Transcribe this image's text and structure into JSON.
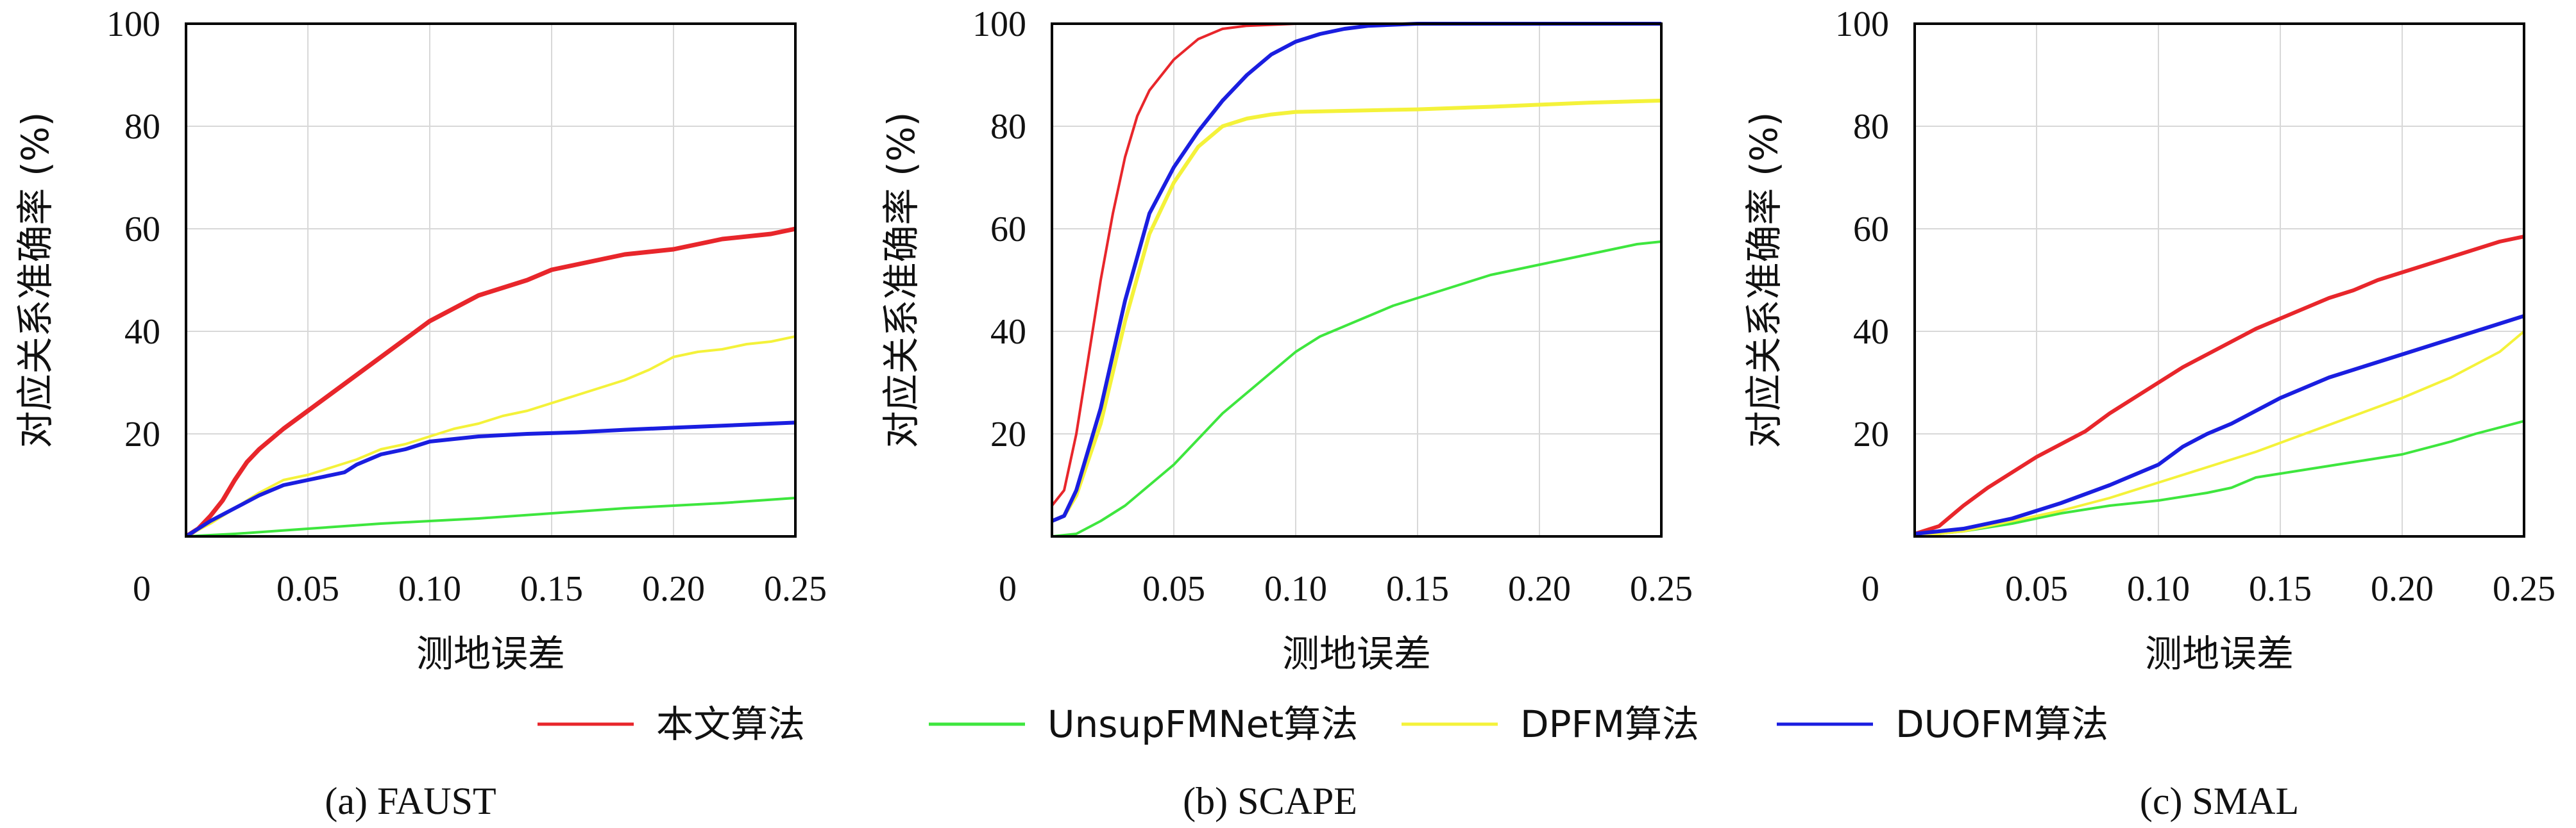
{
  "chart_data": [
    {
      "type": "line",
      "caption": "(a) FAUST",
      "xlabel": "测地误差",
      "ylabel": "对应关系准确率 (%)",
      "xlim": [
        0,
        0.25
      ],
      "ylim": [
        0,
        100
      ],
      "x_ticks": [
        "0",
        "0.05",
        "0.10",
        "0.15",
        "0.20",
        "0.25"
      ],
      "y_ticks": [
        "20",
        "40",
        "60",
        "80",
        "100"
      ],
      "grid": true,
      "series": [
        {
          "name": "本文算法",
          "color": "#e8262b",
          "width": 7,
          "points": [
            [
              0,
              0
            ],
            [
              0.005,
              1.5
            ],
            [
              0.01,
              4
            ],
            [
              0.015,
              7
            ],
            [
              0.02,
              11
            ],
            [
              0.025,
              14.5
            ],
            [
              0.03,
              17
            ],
            [
              0.04,
              21
            ],
            [
              0.05,
              24.5
            ],
            [
              0.06,
              28
            ],
            [
              0.07,
              31.5
            ],
            [
              0.08,
              35
            ],
            [
              0.09,
              38.5
            ],
            [
              0.1,
              42
            ],
            [
              0.11,
              44.5
            ],
            [
              0.12,
              47
            ],
            [
              0.13,
              48.5
            ],
            [
              0.14,
              50
            ],
            [
              0.15,
              52
            ],
            [
              0.16,
              53
            ],
            [
              0.17,
              54
            ],
            [
              0.18,
              55
            ],
            [
              0.19,
              55.5
            ],
            [
              0.2,
              56
            ],
            [
              0.21,
              57
            ],
            [
              0.22,
              58
            ],
            [
              0.23,
              58.5
            ],
            [
              0.24,
              59
            ],
            [
              0.25,
              60
            ]
          ]
        },
        {
          "name": "UnsupFMNet算法",
          "color": "#3ee63e",
          "width": 4,
          "points": [
            [
              0,
              0
            ],
            [
              0.02,
              0.5
            ],
            [
              0.05,
              1.5
            ],
            [
              0.08,
              2.5
            ],
            [
              0.1,
              3
            ],
            [
              0.12,
              3.5
            ],
            [
              0.15,
              4.5
            ],
            [
              0.18,
              5.5
            ],
            [
              0.2,
              6
            ],
            [
              0.22,
              6.5
            ],
            [
              0.25,
              7.5
            ]
          ]
        },
        {
          "name": "DPFM算法",
          "color": "#f4f23a",
          "width": 4,
          "points": [
            [
              0,
              0
            ],
            [
              0.01,
              2.5
            ],
            [
              0.02,
              5.5
            ],
            [
              0.03,
              8.5
            ],
            [
              0.04,
              11
            ],
            [
              0.05,
              12
            ],
            [
              0.06,
              13.5
            ],
            [
              0.07,
              15
            ],
            [
              0.08,
              17
            ],
            [
              0.09,
              18
            ],
            [
              0.1,
              19.5
            ],
            [
              0.11,
              21
            ],
            [
              0.12,
              22
            ],
            [
              0.13,
              23.5
            ],
            [
              0.14,
              24.5
            ],
            [
              0.15,
              26
            ],
            [
              0.16,
              27.5
            ],
            [
              0.17,
              29
            ],
            [
              0.18,
              30.5
            ],
            [
              0.19,
              32.5
            ],
            [
              0.2,
              35
            ],
            [
              0.21,
              36
            ],
            [
              0.22,
              36.5
            ],
            [
              0.23,
              37.5
            ],
            [
              0.24,
              38
            ],
            [
              0.25,
              39
            ]
          ]
        },
        {
          "name": "DUOFM算法",
          "color": "#1a1ee0",
          "width": 6,
          "points": [
            [
              0,
              0
            ],
            [
              0.01,
              3
            ],
            [
              0.02,
              5.5
            ],
            [
              0.03,
              8
            ],
            [
              0.04,
              10
            ],
            [
              0.05,
              11
            ],
            [
              0.06,
              12
            ],
            [
              0.065,
              12.5
            ],
            [
              0.07,
              14
            ],
            [
              0.08,
              16
            ],
            [
              0.09,
              17
            ],
            [
              0.1,
              18.5
            ],
            [
              0.11,
              19
            ],
            [
              0.12,
              19.5
            ],
            [
              0.14,
              20
            ],
            [
              0.16,
              20.3
            ],
            [
              0.18,
              20.8
            ],
            [
              0.2,
              21.2
            ],
            [
              0.22,
              21.6
            ],
            [
              0.25,
              22.2
            ]
          ]
        }
      ]
    },
    {
      "type": "line",
      "caption": "(b) SCAPE",
      "xlabel": "测地误差",
      "ylabel": "对应关系准确率 (%)",
      "xlim": [
        0,
        0.25
      ],
      "ylim": [
        0,
        100
      ],
      "x_ticks": [
        "0",
        "0.05",
        "0.10",
        "0.15",
        "0.20",
        "0.25"
      ],
      "y_ticks": [
        "20",
        "40",
        "60",
        "80",
        "100"
      ],
      "grid": true,
      "series": [
        {
          "name": "本文算法",
          "color": "#e8262b",
          "width": 4,
          "points": [
            [
              0,
              6
            ],
            [
              0.005,
              9
            ],
            [
              0.01,
              20
            ],
            [
              0.015,
              35
            ],
            [
              0.02,
              50
            ],
            [
              0.025,
              63
            ],
            [
              0.03,
              74
            ],
            [
              0.035,
              82
            ],
            [
              0.04,
              87
            ],
            [
              0.05,
              93
            ],
            [
              0.06,
              97
            ],
            [
              0.07,
              99
            ],
            [
              0.08,
              99.6
            ],
            [
              0.1,
              100
            ],
            [
              0.25,
              100
            ]
          ]
        },
        {
          "name": "UnsupFMNet算法",
          "color": "#3ee63e",
          "width": 4,
          "points": [
            [
              0,
              0
            ],
            [
              0.01,
              0.5
            ],
            [
              0.02,
              3
            ],
            [
              0.03,
              6
            ],
            [
              0.04,
              10
            ],
            [
              0.05,
              14
            ],
            [
              0.06,
              19
            ],
            [
              0.07,
              24
            ],
            [
              0.08,
              28
            ],
            [
              0.09,
              32
            ],
            [
              0.1,
              36
            ],
            [
              0.11,
              39
            ],
            [
              0.12,
              41
            ],
            [
              0.13,
              43
            ],
            [
              0.14,
              45
            ],
            [
              0.15,
              46.5
            ],
            [
              0.16,
              48
            ],
            [
              0.17,
              49.5
            ],
            [
              0.18,
              51
            ],
            [
              0.19,
              52
            ],
            [
              0.2,
              53
            ],
            [
              0.21,
              54
            ],
            [
              0.22,
              55
            ],
            [
              0.23,
              56
            ],
            [
              0.24,
              57
            ],
            [
              0.25,
              57.5
            ]
          ]
        },
        {
          "name": "DPFM算法",
          "color": "#f4f23a",
          "width": 6,
          "points": [
            [
              0,
              3
            ],
            [
              0.005,
              4
            ],
            [
              0.01,
              8
            ],
            [
              0.02,
              22
            ],
            [
              0.03,
              42
            ],
            [
              0.04,
              59
            ],
            [
              0.05,
              69
            ],
            [
              0.06,
              76
            ],
            [
              0.07,
              80
            ],
            [
              0.08,
              81.5
            ],
            [
              0.09,
              82.3
            ],
            [
              0.1,
              82.8
            ],
            [
              0.12,
              83
            ],
            [
              0.15,
              83.3
            ],
            [
              0.18,
              83.8
            ],
            [
              0.2,
              84.2
            ],
            [
              0.22,
              84.6
            ],
            [
              0.25,
              85
            ]
          ]
        },
        {
          "name": "DUOFM算法",
          "color": "#1a1ee0",
          "width": 6,
          "points": [
            [
              0,
              3
            ],
            [
              0.005,
              4
            ],
            [
              0.01,
              9
            ],
            [
              0.02,
              25
            ],
            [
              0.03,
              46
            ],
            [
              0.04,
              63
            ],
            [
              0.05,
              72
            ],
            [
              0.06,
              79
            ],
            [
              0.07,
              85
            ],
            [
              0.08,
              90
            ],
            [
              0.09,
              94
            ],
            [
              0.1,
              96.5
            ],
            [
              0.11,
              98
            ],
            [
              0.12,
              99
            ],
            [
              0.13,
              99.6
            ],
            [
              0.15,
              100
            ],
            [
              0.25,
              100
            ]
          ]
        }
      ]
    },
    {
      "type": "line",
      "caption": "(c) SMAL",
      "xlabel": "测地误差",
      "ylabel": "对应关系准确率 (%)",
      "xlim": [
        0,
        0.25
      ],
      "ylim": [
        0,
        100
      ],
      "x_ticks": [
        "0",
        "0.05",
        "0.10",
        "0.15",
        "0.20",
        "0.25"
      ],
      "y_ticks": [
        "20",
        "40",
        "60",
        "80",
        "100"
      ],
      "grid": true,
      "series": [
        {
          "name": "本文算法",
          "color": "#e8262b",
          "width": 6,
          "points": [
            [
              0,
              0.5
            ],
            [
              0.01,
              2
            ],
            [
              0.02,
              6
            ],
            [
              0.03,
              9.5
            ],
            [
              0.04,
              12.5
            ],
            [
              0.05,
              15.5
            ],
            [
              0.06,
              18
            ],
            [
              0.07,
              20.5
            ],
            [
              0.08,
              24
            ],
            [
              0.09,
              27
            ],
            [
              0.1,
              30
            ],
            [
              0.11,
              33
            ],
            [
              0.12,
              35.5
            ],
            [
              0.13,
              38
            ],
            [
              0.14,
              40.5
            ],
            [
              0.15,
              42.5
            ],
            [
              0.16,
              44.5
            ],
            [
              0.17,
              46.5
            ],
            [
              0.18,
              48
            ],
            [
              0.19,
              50
            ],
            [
              0.2,
              51.5
            ],
            [
              0.21,
              53
            ],
            [
              0.22,
              54.5
            ],
            [
              0.23,
              56
            ],
            [
              0.24,
              57.5
            ],
            [
              0.25,
              58.5
            ]
          ]
        },
        {
          "name": "UnsupFMNet算法",
          "color": "#3ee63e",
          "width": 4,
          "points": [
            [
              0,
              0
            ],
            [
              0.02,
              1
            ],
            [
              0.04,
              2.5
            ],
            [
              0.06,
              4.5
            ],
            [
              0.08,
              6
            ],
            [
              0.1,
              7
            ],
            [
              0.12,
              8.5
            ],
            [
              0.13,
              9.5
            ],
            [
              0.14,
              11.5
            ],
            [
              0.16,
              13
            ],
            [
              0.18,
              14.5
            ],
            [
              0.2,
              16
            ],
            [
              0.22,
              18.5
            ],
            [
              0.23,
              20
            ],
            [
              0.25,
              22.5
            ]
          ]
        },
        {
          "name": "DPFM算法",
          "color": "#f4f23a",
          "width": 4,
          "points": [
            [
              0,
              0
            ],
            [
              0.02,
              1
            ],
            [
              0.04,
              3
            ],
            [
              0.06,
              5
            ],
            [
              0.08,
              7.5
            ],
            [
              0.1,
              10.5
            ],
            [
              0.12,
              13.5
            ],
            [
              0.14,
              16.5
            ],
            [
              0.16,
              20
            ],
            [
              0.18,
              23.5
            ],
            [
              0.2,
              27
            ],
            [
              0.22,
              31
            ],
            [
              0.24,
              36
            ],
            [
              0.25,
              40
            ]
          ]
        },
        {
          "name": "DUOFM算法",
          "color": "#1a1ee0",
          "width": 6,
          "points": [
            [
              0,
              0.5
            ],
            [
              0.02,
              1.5
            ],
            [
              0.04,
              3.5
            ],
            [
              0.06,
              6.5
            ],
            [
              0.08,
              10
            ],
            [
              0.1,
              14
            ],
            [
              0.11,
              17.5
            ],
            [
              0.12,
              20
            ],
            [
              0.13,
              22
            ],
            [
              0.14,
              24.5
            ],
            [
              0.15,
              27
            ],
            [
              0.16,
              29
            ],
            [
              0.17,
              31
            ],
            [
              0.18,
              32.5
            ],
            [
              0.19,
              34
            ],
            [
              0.2,
              35.5
            ],
            [
              0.21,
              37
            ],
            [
              0.22,
              38.5
            ],
            [
              0.23,
              40
            ],
            [
              0.24,
              41.5
            ],
            [
              0.25,
              43
            ]
          ]
        }
      ]
    }
  ],
  "legend": {
    "placement": "bottom-center",
    "items": [
      {
        "label": "本文算法",
        "color": "#e8262b"
      },
      {
        "label": "UnsupFMNet算法",
        "color": "#3ee63e"
      },
      {
        "label": "DPFM算法",
        "color": "#f4f23a"
      },
      {
        "label": "DUOFM算法",
        "color": "#1a1ee0"
      }
    ]
  }
}
